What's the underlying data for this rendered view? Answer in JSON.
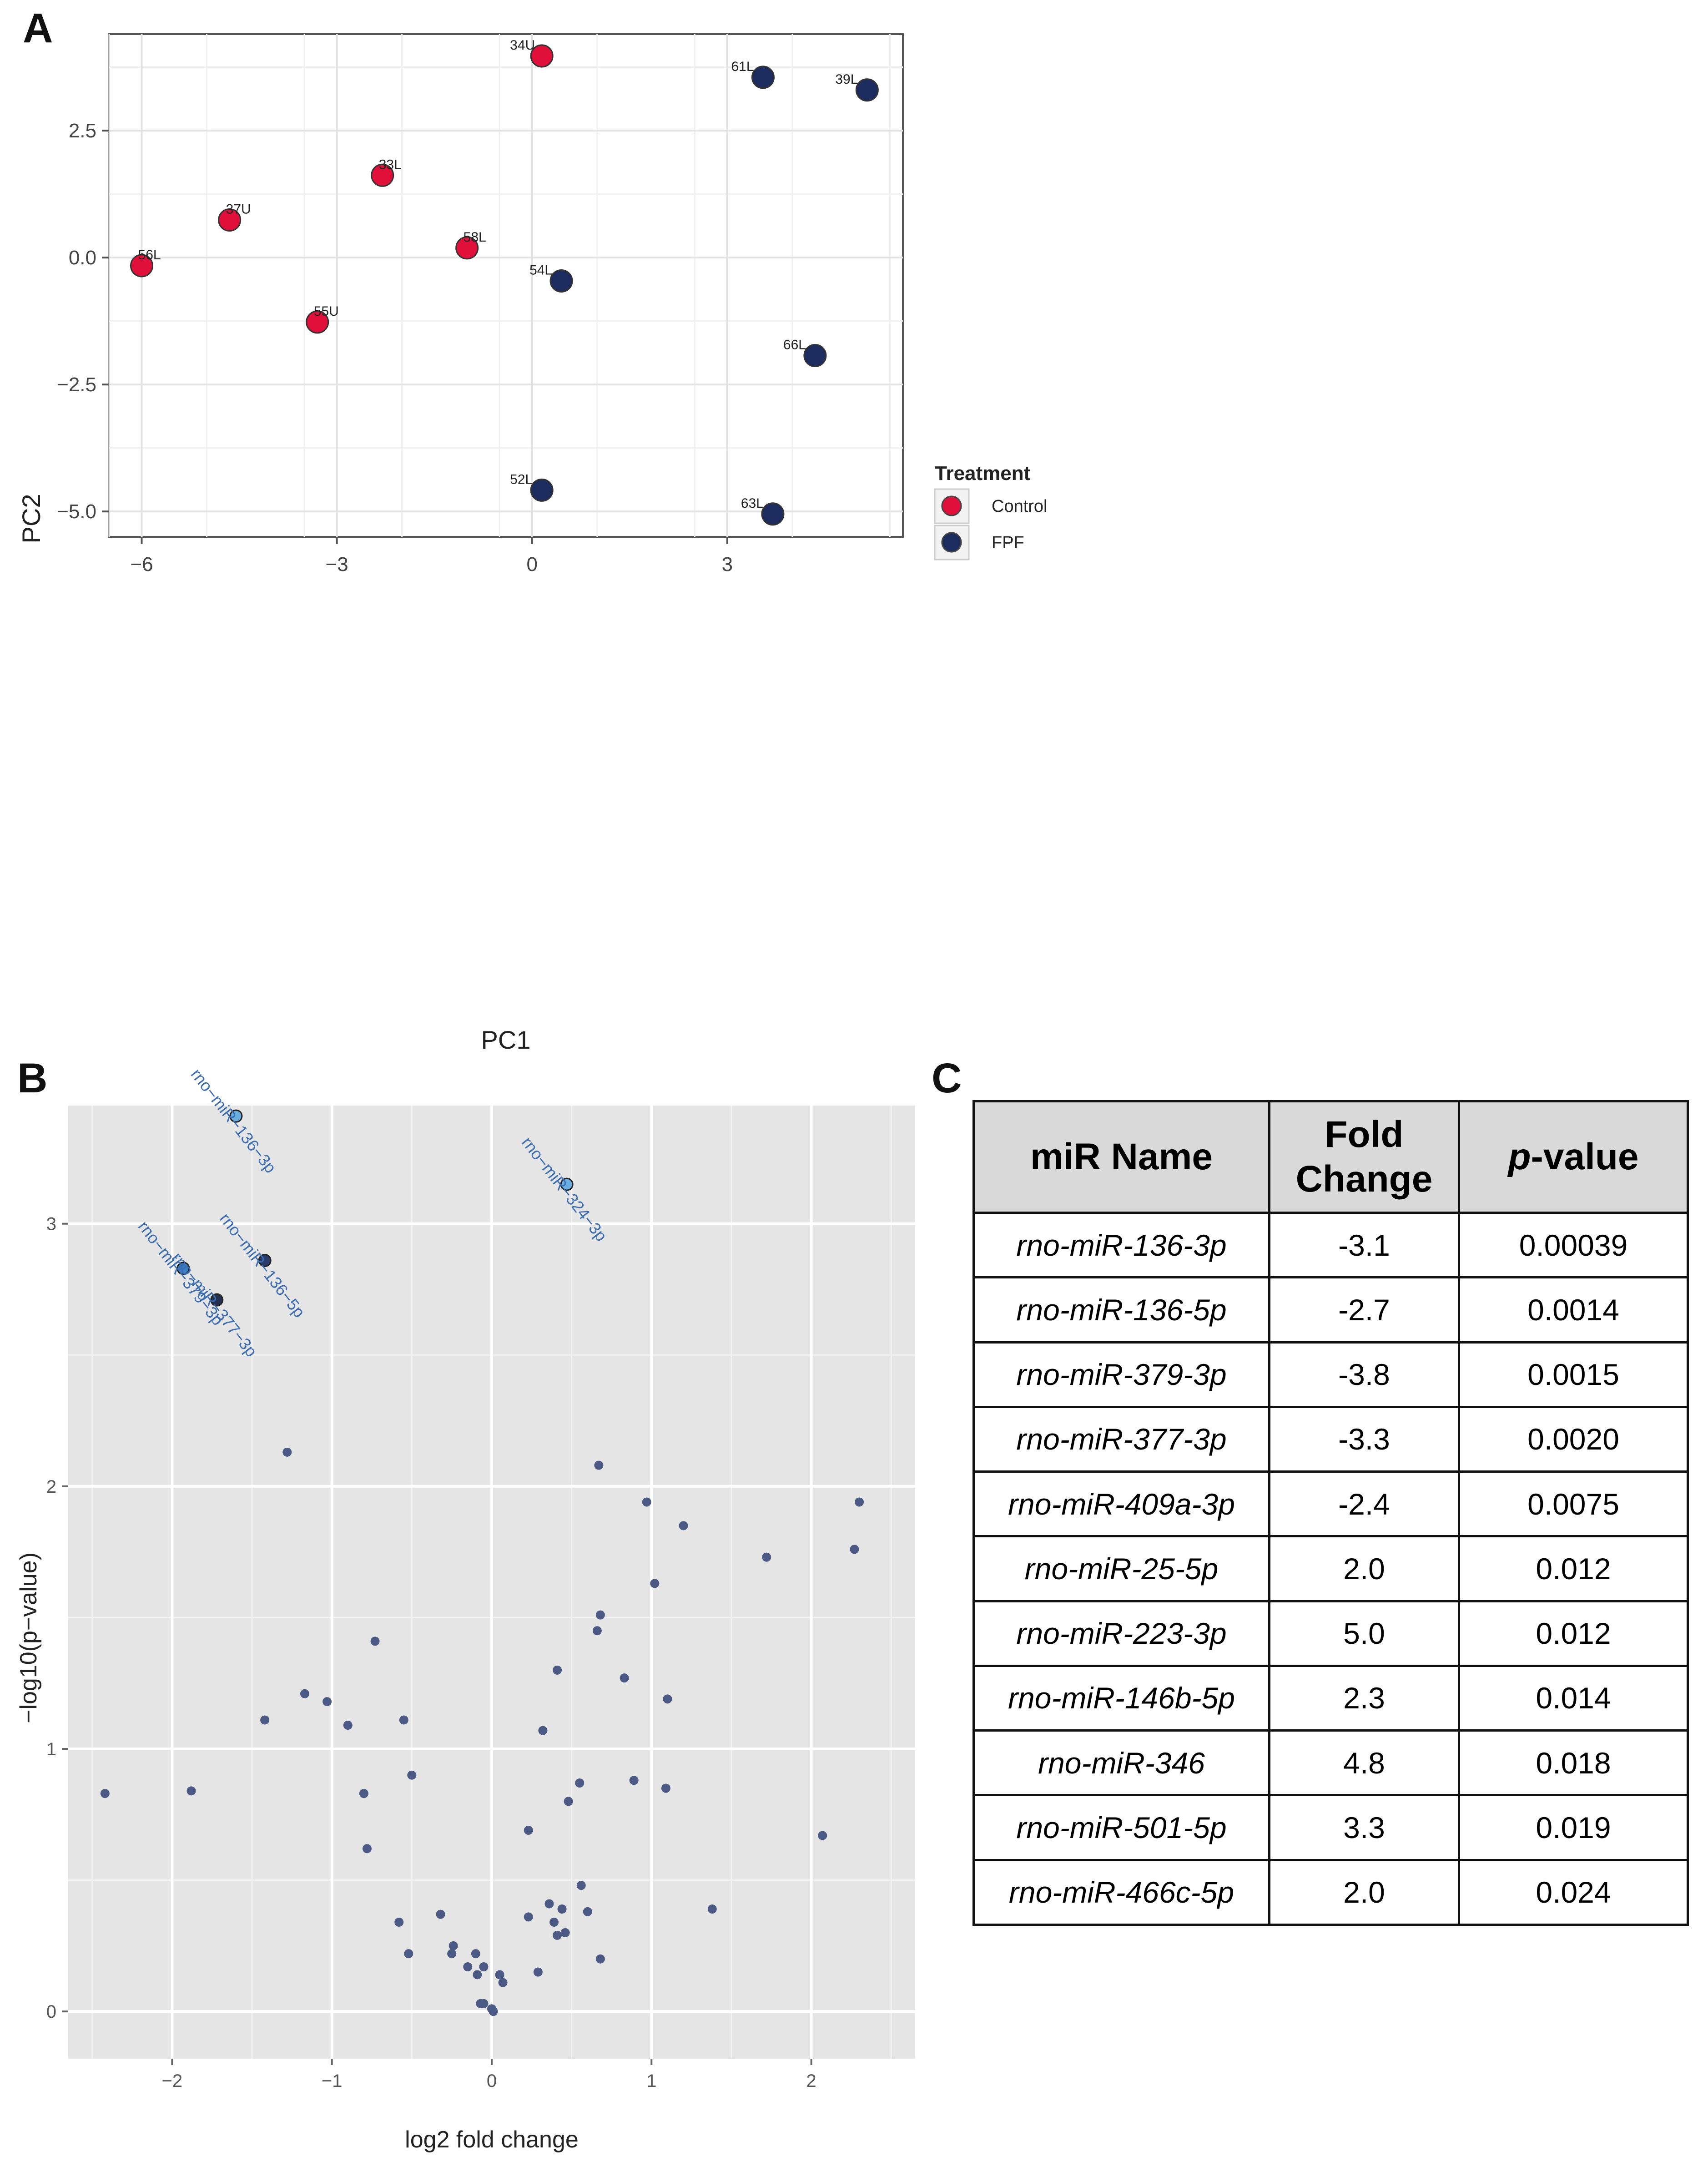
{
  "panel_labels": {
    "a": "A",
    "b": "B",
    "c": "C"
  },
  "colors": {
    "control": "#e0103a",
    "fpf": "#1c2c5e",
    "volcano_point": "#4a5a85",
    "volcano_highlight": "#6aaee0",
    "volcano_label": "#3a6db5",
    "panel_bg": "#e5e5e5"
  },
  "chart_data": [
    {
      "id": "A",
      "type": "scatter",
      "xlabel": "PC1",
      "ylabel": "PC2",
      "xlim": [
        -6.5,
        5.7
      ],
      "ylim": [
        -5.5,
        4.4
      ],
      "xticks": [
        -6,
        -3,
        0,
        3
      ],
      "xtick_labels": [
        "−6",
        "−3",
        "0",
        "3"
      ],
      "yticks": [
        2.5,
        0.0,
        -2.5,
        -5.0
      ],
      "ytick_labels": [
        "2.5",
        "0.0",
        "−2.5",
        "−5.0"
      ],
      "grid": true,
      "legend": {
        "title": "Treatment",
        "placement": "right",
        "entries": [
          {
            "label": "Control",
            "color": "#e0103a"
          },
          {
            "label": "FPF",
            "color": "#1c2c5e"
          }
        ]
      },
      "series": [
        {
          "name": "Control",
          "points": [
            {
              "label": "34U",
              "x": 0.15,
              "y": 3.97
            },
            {
              "label": "33L",
              "x": -2.3,
              "y": 1.62
            },
            {
              "label": "37U",
              "x": -4.65,
              "y": 0.74
            },
            {
              "label": "58L",
              "x": -1.0,
              "y": 0.19
            },
            {
              "label": "56L",
              "x": -6.0,
              "y": -0.16
            },
            {
              "label": "55U",
              "x": -3.3,
              "y": -1.27
            }
          ]
        },
        {
          "name": "FPF",
          "points": [
            {
              "label": "61L",
              "x": 3.55,
              "y": 3.55
            },
            {
              "label": "39L",
              "x": 5.15,
              "y": 3.3
            },
            {
              "label": "54L",
              "x": 0.45,
              "y": -0.46
            },
            {
              "label": "66L",
              "x": 4.35,
              "y": -1.93
            },
            {
              "label": "52L",
              "x": 0.15,
              "y": -4.58
            },
            {
              "label": "63L",
              "x": 3.7,
              "y": -5.05
            }
          ]
        }
      ]
    },
    {
      "id": "B",
      "type": "scatter",
      "xlabel": "log2 fold change",
      "ylabel": "−log10(p−value)",
      "xlim": [
        -2.65,
        2.65
      ],
      "ylim": [
        -0.18,
        3.45
      ],
      "xticks": [
        -2,
        -1,
        0,
        1,
        2
      ],
      "xtick_labels": [
        "−2",
        "−1",
        "0",
        "1",
        "2"
      ],
      "yticks": [
        0,
        1,
        2,
        3
      ],
      "ytick_labels": [
        "0",
        "1",
        "2",
        "3"
      ],
      "grid": true,
      "highlighted": [
        {
          "label": "rno−miR−136−3p",
          "x": -1.6,
          "y": 3.41
        },
        {
          "label": "rno−miR−324−3p",
          "x": 0.47,
          "y": 3.15
        },
        {
          "label": "rno−miR−136−5p",
          "x": -1.42,
          "y": 2.86
        },
        {
          "label": "rno−miR−379−3p",
          "x": -1.93,
          "y": 2.83
        },
        {
          "label": "rno−miR−377−3p",
          "x": -1.72,
          "y": 2.71
        }
      ],
      "points": [
        [
          -1.28,
          2.13
        ],
        [
          0.67,
          2.08
        ],
        [
          0.97,
          1.94
        ],
        [
          1.2,
          1.85
        ],
        [
          2.3,
          1.94
        ],
        [
          1.72,
          1.73
        ],
        [
          2.27,
          1.76
        ],
        [
          1.02,
          1.63
        ],
        [
          0.68,
          1.51
        ],
        [
          0.66,
          1.45
        ],
        [
          -0.73,
          1.41
        ],
        [
          0.83,
          1.27
        ],
        [
          0.41,
          1.3
        ],
        [
          -1.17,
          1.21
        ],
        [
          -1.03,
          1.18
        ],
        [
          1.1,
          1.19
        ],
        [
          -1.42,
          1.11
        ],
        [
          -0.9,
          1.09
        ],
        [
          -0.55,
          1.11
        ],
        [
          0.32,
          1.07
        ],
        [
          -0.5,
          0.9
        ],
        [
          0.55,
          0.87
        ],
        [
          0.89,
          0.88
        ],
        [
          -2.42,
          0.83
        ],
        [
          -1.88,
          0.84
        ],
        [
          -0.8,
          0.83
        ],
        [
          0.48,
          0.8
        ],
        [
          1.09,
          0.85
        ],
        [
          -0.78,
          0.62
        ],
        [
          0.23,
          0.69
        ],
        [
          2.07,
          0.67
        ],
        [
          0.56,
          0.48
        ],
        [
          0.36,
          0.41
        ],
        [
          0.44,
          0.39
        ],
        [
          0.6,
          0.38
        ],
        [
          1.38,
          0.39
        ],
        [
          -0.32,
          0.37
        ],
        [
          0.23,
          0.36
        ],
        [
          0.39,
          0.34
        ],
        [
          -0.58,
          0.34
        ],
        [
          0.41,
          0.29
        ],
        [
          0.46,
          0.3
        ],
        [
          -0.24,
          0.25
        ],
        [
          -0.25,
          0.22
        ],
        [
          -0.1,
          0.22
        ],
        [
          -0.52,
          0.22
        ],
        [
          0.68,
          0.2
        ],
        [
          -0.15,
          0.17
        ],
        [
          -0.05,
          0.17
        ],
        [
          -0.09,
          0.14
        ],
        [
          0.05,
          0.14
        ],
        [
          0.29,
          0.15
        ],
        [
          0.07,
          0.11
        ],
        [
          -0.07,
          0.03
        ],
        [
          -0.05,
          0.03
        ],
        [
          0.0,
          0.01
        ],
        [
          0.01,
          0.0
        ]
      ]
    },
    {
      "id": "C",
      "type": "table",
      "columns": [
        "miR Name",
        "Fold Change",
        "p-value"
      ],
      "rows": [
        [
          "rno-miR-136-3p",
          "-3.1",
          "0.00039"
        ],
        [
          "rno-miR-136-5p",
          "-2.7",
          "0.0014"
        ],
        [
          "rno-miR-379-3p",
          "-3.8",
          "0.0015"
        ],
        [
          "rno-miR-377-3p",
          "-3.3",
          "0.0020"
        ],
        [
          "rno-miR-409a-3p",
          "-2.4",
          "0.0075"
        ],
        [
          "rno-miR-25-5p",
          "2.0",
          "0.012"
        ],
        [
          "rno-miR-223-3p",
          "5.0",
          "0.012"
        ],
        [
          "rno-miR-146b-5p",
          "2.3",
          "0.014"
        ],
        [
          "rno-miR-346",
          "4.8",
          "0.018"
        ],
        [
          "rno-miR-501-5p",
          "3.3",
          "0.019"
        ],
        [
          "rno-miR-466c-5p",
          "2.0",
          "0.024"
        ]
      ]
    }
  ],
  "table_header": {
    "mir_name": "miR Name",
    "fold_line1": "Fold",
    "fold_line2": "Change",
    "p_italic": "p",
    "p_rest": "-value"
  }
}
